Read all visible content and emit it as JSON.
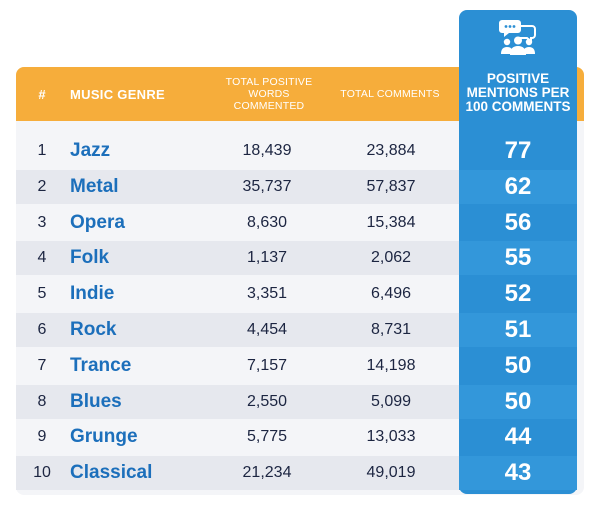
{
  "headers": {
    "rank": "#",
    "genre": "MUSIC GENRE",
    "words": "TOTAL POSITIVE WORDS COMMENTED",
    "comments": "TOTAL COMMENTS",
    "mentions": "POSITIVE MENTIONS PER 100 COMMENTS"
  },
  "icon": "comment-group-icon",
  "colors": {
    "header": "#f6ad3b",
    "highlight_column": "#2b8fd4",
    "genre_text": "#1c6fbb",
    "body_text": "#1c2541"
  },
  "rows": [
    {
      "rank": "1",
      "genre": "Jazz",
      "words": "18,439",
      "comments": "23,884",
      "mentions": "77"
    },
    {
      "rank": "2",
      "genre": "Metal",
      "words": "35,737",
      "comments": "57,837",
      "mentions": "62"
    },
    {
      "rank": "3",
      "genre": "Opera",
      "words": "8,630",
      "comments": "15,384",
      "mentions": "56"
    },
    {
      "rank": "4",
      "genre": "Folk",
      "words": "1,137",
      "comments": "2,062",
      "mentions": "55"
    },
    {
      "rank": "5",
      "genre": "Indie",
      "words": "3,351",
      "comments": "6,496",
      "mentions": "52"
    },
    {
      "rank": "6",
      "genre": "Rock",
      "words": "4,454",
      "comments": "8,731",
      "mentions": "51"
    },
    {
      "rank": "7",
      "genre": "Trance",
      "words": "7,157",
      "comments": "14,198",
      "mentions": "50"
    },
    {
      "rank": "8",
      "genre": "Blues",
      "words": "2,550",
      "comments": "5,099",
      "mentions": "50"
    },
    {
      "rank": "9",
      "genre": "Grunge",
      "words": "5,775",
      "comments": "13,033",
      "mentions": "44"
    },
    {
      "rank": "10",
      "genre": "Classical",
      "words": "21,234",
      "comments": "49,019",
      "mentions": "43"
    }
  ]
}
